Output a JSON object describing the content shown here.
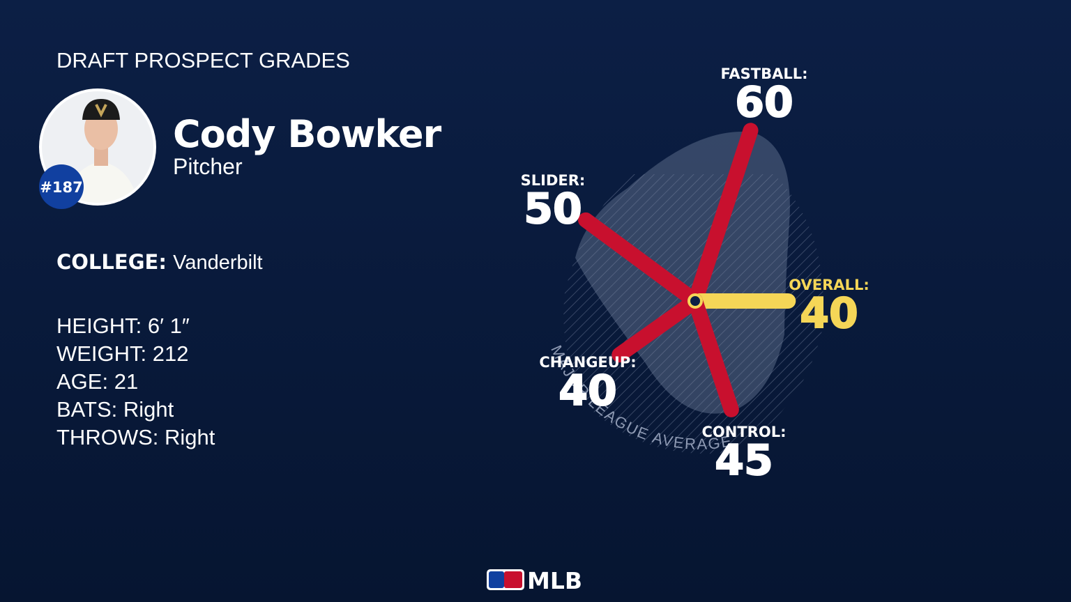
{
  "header": {
    "title": "DRAFT PROSPECT GRADES"
  },
  "player": {
    "name": "Cody Bowker",
    "position": "Pitcher",
    "rank": "#187"
  },
  "college": {
    "label": "COLLEGE:",
    "value": "Vanderbilt"
  },
  "details": [
    {
      "label": "HEIGHT:",
      "value": "6′ 1″"
    },
    {
      "label": "WEIGHT:",
      "value": "212"
    },
    {
      "label": "AGE:",
      "value": "21"
    },
    {
      "label": "BATS:",
      "value": "Right"
    },
    {
      "label": "THROWS:",
      "value": "Right"
    }
  ],
  "chart_data": {
    "type": "radial-bar",
    "categories": [
      "FASTBALL:",
      "OVERALL:",
      "CONTROL:",
      "CHANGEUP:",
      "SLIDER:"
    ],
    "values": [
      60,
      40,
      45,
      40,
      50
    ],
    "colors": [
      "#c8102e",
      "#f5d657",
      "#c8102e",
      "#c8102e",
      "#c8102e"
    ],
    "annotation": "MAJOR LEAGUE AVERAGE"
  },
  "footer": {
    "logo": "MLB"
  }
}
